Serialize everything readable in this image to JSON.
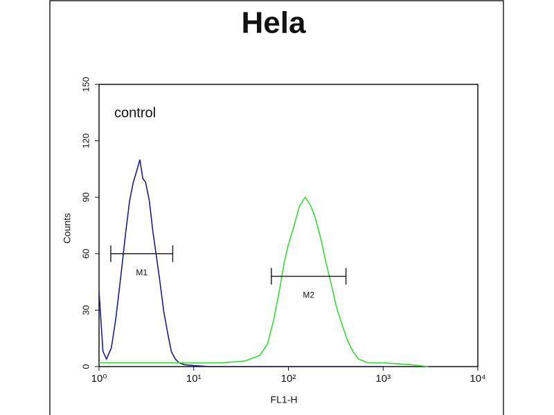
{
  "chart_data": {
    "type": "line",
    "title": "Hela",
    "annotation": "control",
    "xlabel": "FL1-H",
    "ylabel": "Counts",
    "xscale": "log",
    "xlim": [
      1,
      10000
    ],
    "ylim": [
      0,
      150
    ],
    "xticks": [
      {
        "value": 1,
        "label": "10⁰"
      },
      {
        "value": 10,
        "label": "10¹"
      },
      {
        "value": 100,
        "label": "10²"
      },
      {
        "value": 1000,
        "label": "10³"
      },
      {
        "value": 10000,
        "label": "10⁴"
      }
    ],
    "yticks": [
      0,
      30,
      60,
      90,
      120,
      150
    ],
    "series": [
      {
        "color": "#1a1a8c",
        "x": [
          1,
          1.1,
          1.2,
          1.35,
          1.5,
          1.7,
          1.9,
          2.1,
          2.3,
          2.5,
          2.7,
          2.9,
          3.1,
          3.4,
          3.7,
          4.0,
          4.4,
          4.8,
          5.3,
          5.8,
          6.4,
          7,
          8,
          10,
          15,
          30,
          100,
          300,
          1000
        ],
        "values": [
          40,
          8,
          4,
          10,
          25,
          48,
          70,
          88,
          98,
          104,
          110,
          100,
          98,
          88,
          72,
          60,
          45,
          30,
          18,
          8,
          4,
          2,
          1,
          0.5,
          0,
          0,
          0,
          0,
          0
        ]
      },
      {
        "color": "#33dd33",
        "x": [
          1,
          2,
          5,
          10,
          20,
          35,
          50,
          60,
          70,
          80,
          90,
          100,
          115,
          130,
          150,
          170,
          190,
          220,
          250,
          280,
          320,
          370,
          420,
          480,
          550,
          700,
          1000,
          2000,
          3000
        ],
        "values": [
          2,
          2,
          2,
          2,
          2,
          3,
          6,
          12,
          25,
          40,
          55,
          65,
          75,
          85,
          90,
          86,
          80,
          68,
          55,
          45,
          32,
          22,
          14,
          8,
          4,
          2,
          2,
          1,
          0
        ]
      }
    ],
    "markers": [
      {
        "label": "M1",
        "x": [
          1.33,
          6
        ],
        "y": 60
      },
      {
        "label": "M2",
        "x": [
          66,
          405
        ],
        "y": 48
      }
    ]
  }
}
